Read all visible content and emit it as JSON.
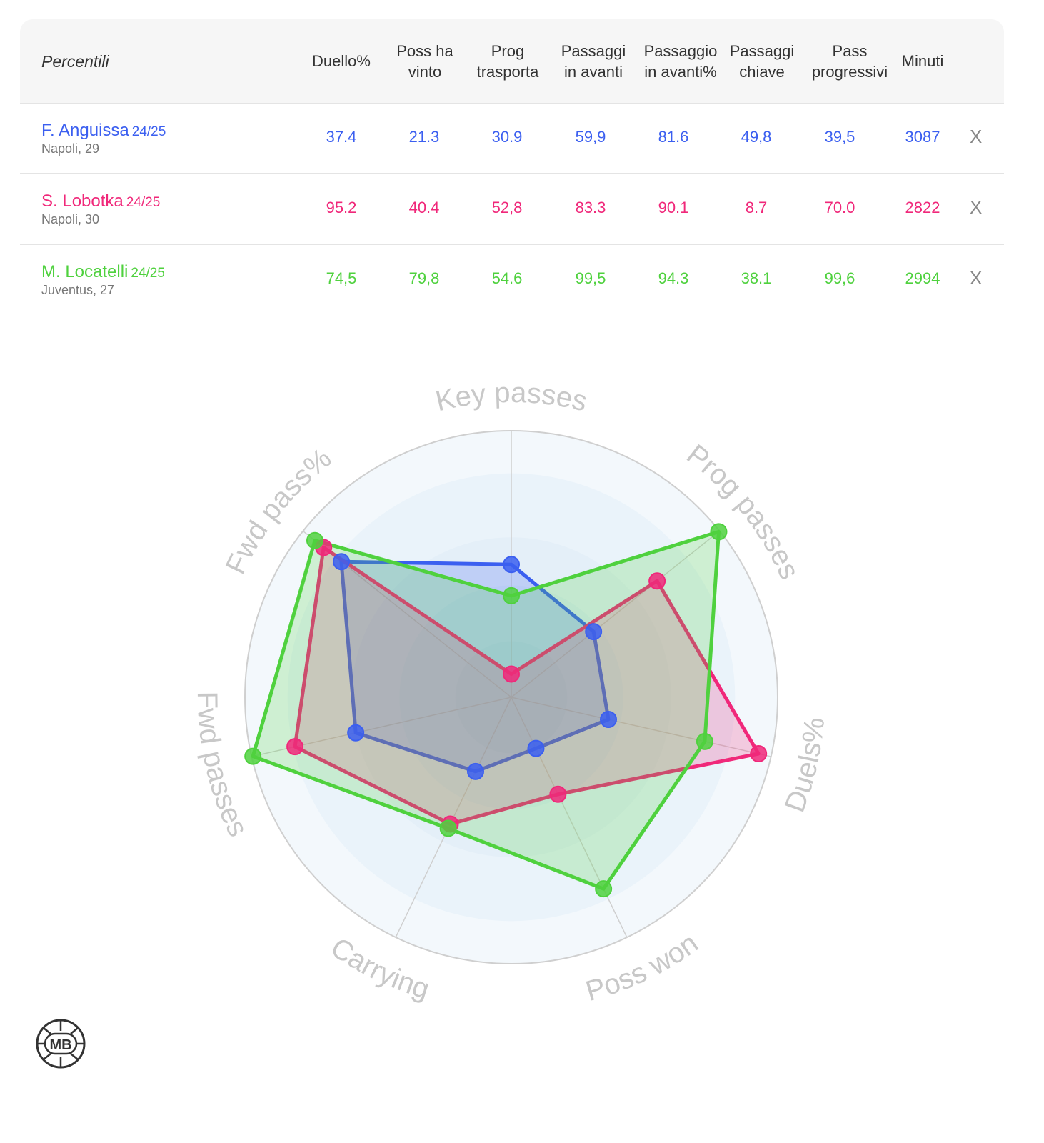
{
  "table": {
    "header_label": "Percentili",
    "columns": [
      {
        "label": "Duello%"
      },
      {
        "label": "Poss ha vinto"
      },
      {
        "label": "Prog trasporta"
      },
      {
        "label": "Passaggi in avanti"
      },
      {
        "label": "Passaggio in avanti%"
      },
      {
        "label": "Passaggi chiave"
      },
      {
        "label": "Pass progressivi"
      },
      {
        "label": "Minuti"
      }
    ],
    "remove_label": "X",
    "players": [
      {
        "name": "F. Anguissa",
        "season": "24/25",
        "team": "Napoli, 29",
        "color": "#3b5ff0",
        "values": [
          "37.4",
          "21.3",
          "30.9",
          "59,9",
          "81.6",
          "49,8",
          "39,5",
          "3087"
        ]
      },
      {
        "name": "S. Lobotka",
        "season": "24/25",
        "team": "Napoli, 30",
        "color": "#f0287a",
        "values": [
          "95.2",
          "40.4",
          "52,8",
          "83.3",
          "90.1",
          "8.7",
          "70.0",
          "2822"
        ]
      },
      {
        "name": "M. Locatelli",
        "season": "24/25",
        "team": "Juventus, 27",
        "color": "#4fd13e",
        "values": [
          "74,5",
          "79,8",
          "54.6",
          "99,5",
          "94.3",
          "38.1",
          "99,6",
          "2994"
        ]
      }
    ]
  },
  "chart_data": {
    "type": "radar",
    "axes": [
      "Key passes",
      "Prog passes",
      "Duels%",
      "Poss won",
      "Carrying",
      "Fwd passes",
      "Fwd pass%"
    ],
    "range": [
      0,
      100
    ],
    "series": [
      {
        "name": "F. Anguissa",
        "color": "#3b5ff0",
        "values": [
          49.8,
          39.5,
          37.4,
          21.3,
          30.9,
          59.9,
          81.6
        ]
      },
      {
        "name": "S. Lobotka",
        "color": "#f0287a",
        "values": [
          8.7,
          70.0,
          95.2,
          40.4,
          52.8,
          83.3,
          90.1
        ]
      },
      {
        "name": "M. Locatelli",
        "color": "#4fd13e",
        "values": [
          38.1,
          99.6,
          74.5,
          79.8,
          54.6,
          99.5,
          94.3
        ]
      }
    ]
  },
  "logo": {
    "text": "MB"
  }
}
